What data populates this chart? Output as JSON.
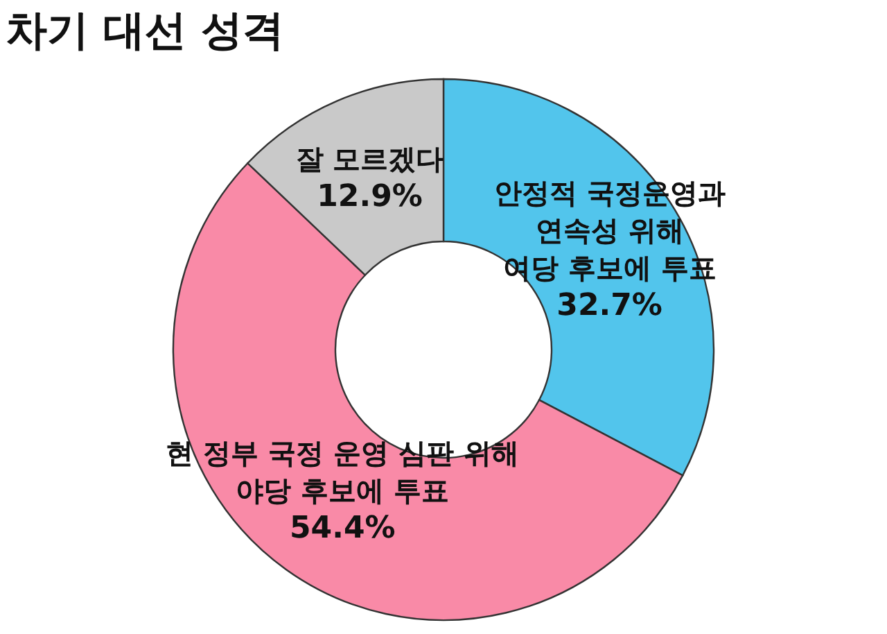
{
  "chart_data": {
    "type": "donut",
    "title": "차기 대선 성격",
    "categories": [
      "안정적 국정운영과\n연속성 위해\n여당 후보에 투표",
      "현 정부 국정 운영 심판 위해\n야당 후보에 투표",
      "잘 모르겠다"
    ],
    "values": [
      32.7,
      54.4,
      12.9
    ],
    "value_labels": [
      "32.7%",
      "54.4%",
      "12.9%"
    ],
    "colors": [
      "#52c5ec",
      "#f98aa7",
      "#c9c9c9"
    ]
  }
}
